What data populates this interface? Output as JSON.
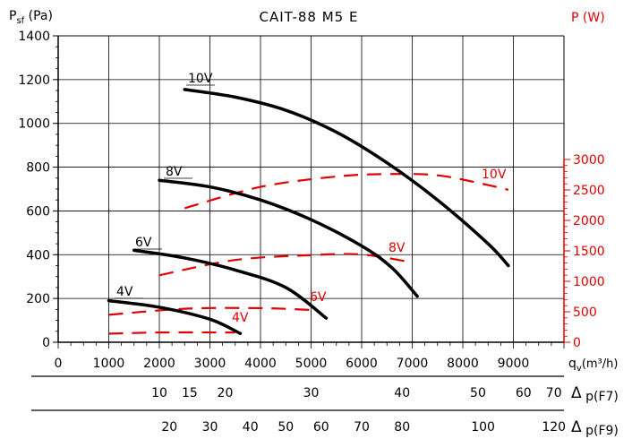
{
  "chart_data": {
    "type": "line",
    "title": "CAIT-88 M5 E",
    "ylabel_left": {
      "main": "P",
      "sub": "sf",
      "unit": "(Pa)"
    },
    "ylabel_right": "P (W)",
    "xlabel": {
      "main": "q",
      "sub": "v",
      "unit": "(m³/h)"
    },
    "x_range": [
      0,
      10000
    ],
    "x_ticks": [
      0,
      1000,
      2000,
      3000,
      4000,
      5000,
      6000,
      7000,
      8000,
      9000
    ],
    "y_left_range": [
      0,
      1400
    ],
    "y_left_ticks": [
      0,
      200,
      400,
      600,
      800,
      1000,
      1200,
      1400
    ],
    "y_right_range": [
      0,
      3000
    ],
    "y_right_ticks": [
      0,
      500,
      1000,
      1500,
      2000,
      2500,
      3000
    ],
    "grid": true,
    "colors": {
      "pressure": "#000000",
      "power": "#e00000"
    },
    "pressure_series": [
      {
        "name": "10V",
        "points": [
          [
            2500,
            1155
          ],
          [
            3500,
            1120
          ],
          [
            4500,
            1060
          ],
          [
            5500,
            960
          ],
          [
            6500,
            820
          ],
          [
            7500,
            650
          ],
          [
            8500,
            450
          ],
          [
            8900,
            350
          ]
        ]
      },
      {
        "name": "8V",
        "points": [
          [
            2000,
            740
          ],
          [
            3000,
            710
          ],
          [
            4000,
            650
          ],
          [
            5000,
            560
          ],
          [
            6000,
            440
          ],
          [
            6600,
            340
          ],
          [
            7100,
            210
          ]
        ]
      },
      {
        "name": "6V",
        "points": [
          [
            1500,
            420
          ],
          [
            2500,
            385
          ],
          [
            3500,
            330
          ],
          [
            4500,
            250
          ],
          [
            5300,
            110
          ]
        ]
      },
      {
        "name": "4V",
        "points": [
          [
            1000,
            190
          ],
          [
            2000,
            160
          ],
          [
            3000,
            105
          ],
          [
            3600,
            40
          ]
        ]
      }
    ],
    "power_series": [
      {
        "name": "10V",
        "points": [
          [
            2500,
            2200
          ],
          [
            4000,
            2550
          ],
          [
            5500,
            2720
          ],
          [
            6500,
            2760
          ],
          [
            7500,
            2740
          ],
          [
            8500,
            2580
          ],
          [
            8900,
            2500
          ]
        ]
      },
      {
        "name": "8V",
        "points": [
          [
            2000,
            1100
          ],
          [
            3500,
            1350
          ],
          [
            5000,
            1430
          ],
          [
            6000,
            1440
          ],
          [
            7000,
            1310
          ]
        ]
      },
      {
        "name": "6V",
        "points": [
          [
            1000,
            450
          ],
          [
            2500,
            550
          ],
          [
            4000,
            560
          ],
          [
            5000,
            530
          ]
        ]
      },
      {
        "name": "4V",
        "points": [
          [
            1000,
            140
          ],
          [
            2000,
            160
          ],
          [
            3500,
            160
          ]
        ]
      }
    ],
    "extra_axes": [
      {
        "name": "F7",
        "label": "p(F7)",
        "prefix": "Δ",
        "ticks": [
          {
            "label": "10",
            "q": 2000
          },
          {
            "label": "15",
            "q": 2600
          },
          {
            "label": "20",
            "q": 3300
          },
          {
            "label": "30",
            "q": 5000
          },
          {
            "label": "40",
            "q": 6800
          },
          {
            "label": "50",
            "q": 8300
          },
          {
            "label": "60",
            "q": 9200
          },
          {
            "label": "70",
            "q": 9800
          }
        ]
      },
      {
        "name": "F9",
        "label": "p(F9)",
        "prefix": "Δ",
        "ticks": [
          {
            "label": "20",
            "q": 2200
          },
          {
            "label": "30",
            "q": 3000
          },
          {
            "label": "40",
            "q": 3800
          },
          {
            "label": "50",
            "q": 4500
          },
          {
            "label": "60",
            "q": 5200
          },
          {
            "label": "70",
            "q": 6000
          },
          {
            "label": "80",
            "q": 6800
          },
          {
            "label": "100",
            "q": 8400
          },
          {
            "label": "120",
            "q": 9800
          }
        ]
      }
    ]
  }
}
